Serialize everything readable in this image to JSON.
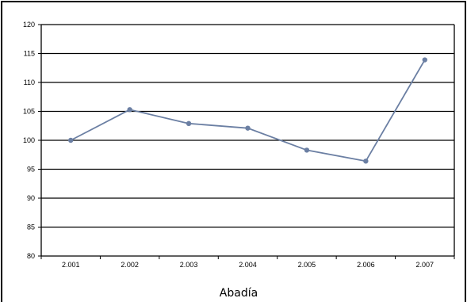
{
  "chart_data": {
    "type": "line",
    "title": "Abadía",
    "xlabel": "",
    "ylabel": "",
    "categories": [
      "2.001",
      "2.002",
      "2.003",
      "2.004",
      "2.005",
      "2.006",
      "2.007"
    ],
    "series": [
      {
        "values": [
          100.0,
          105.3,
          102.9,
          102.1,
          98.3,
          96.4,
          113.9
        ]
      }
    ],
    "ylim": [
      80,
      120
    ],
    "yticks": [
      80,
      85,
      90,
      95,
      100,
      105,
      110,
      115,
      120
    ],
    "ytick_labels": [
      "80",
      "85",
      "90",
      "95",
      "100",
      "105",
      "110",
      "115",
      "120"
    ],
    "grid": true,
    "legend": "none",
    "colors": {
      "line": "#6b7fa3",
      "marker": "#6b7fa3",
      "grid": "#000000"
    }
  }
}
